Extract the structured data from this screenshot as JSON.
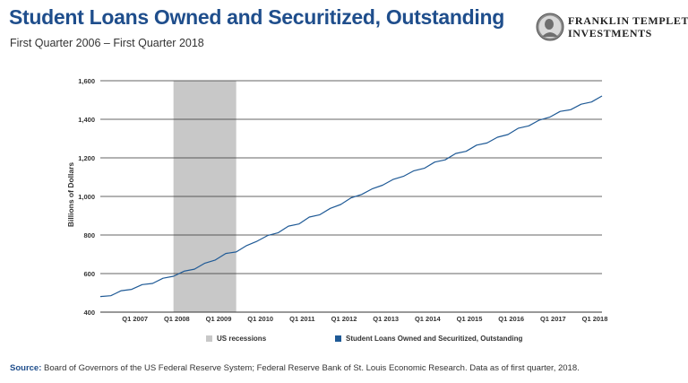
{
  "header": {
    "title": "Student Loans Owned and Securitized, Outstanding",
    "subtitle": "First Quarter 2006 – First Quarter 2018"
  },
  "logo": {
    "line1": "FRANKLIN TEMPLETON",
    "line2": "INVESTMENTS"
  },
  "colors": {
    "title": "#1f4e8c",
    "series": "#1f5a96",
    "recession": "#c8c8c8",
    "grid": "#333333"
  },
  "legend": {
    "recession_label": "US recessions",
    "series_label": "Student Loans Owned and Securitized, Outstanding"
  },
  "footer": {
    "source_label": "Source:",
    "source_text": "Board of Governors of the US Federal Reserve System; Federal Reserve Bank of St. Louis Economic Research. Data as of first quarter, 2018."
  },
  "chart_data": {
    "type": "line",
    "ylabel": "Billions of Dollars",
    "ylim": [
      400,
      1600
    ],
    "yticks": [
      400,
      600,
      800,
      1000,
      1200,
      1400,
      1600
    ],
    "ytick_labels": [
      "400",
      "600",
      "800",
      "1,000",
      "1,200",
      "1,400",
      "1,600"
    ],
    "xlim": [
      2006.0,
      2018.0
    ],
    "xticks": [
      2007,
      2008,
      2009,
      2010,
      2011,
      2012,
      2013,
      2014,
      2015,
      2016,
      2017,
      2018
    ],
    "xtick_labels": [
      "Q1 2007",
      "Q1 2008",
      "Q1 2009",
      "Q1 2010",
      "Q1 2011",
      "Q1 2012",
      "Q1 2013",
      "Q1 2014",
      "Q1 2015",
      "Q1 2016",
      "Q1 2017",
      "Q1 2018"
    ],
    "grid": "horizontal",
    "recessions": [
      {
        "start": 2007.75,
        "end": 2009.25
      }
    ],
    "series": [
      {
        "name": "Student Loans Owned and Securitized, Outstanding",
        "x": [
          2006.0,
          2006.25,
          2006.5,
          2006.75,
          2007.0,
          2007.25,
          2007.5,
          2007.75,
          2008.0,
          2008.25,
          2008.5,
          2008.75,
          2009.0,
          2009.25,
          2009.5,
          2009.75,
          2010.0,
          2010.25,
          2010.5,
          2010.75,
          2011.0,
          2011.25,
          2011.5,
          2011.75,
          2012.0,
          2012.25,
          2012.5,
          2012.75,
          2013.0,
          2013.25,
          2013.5,
          2013.75,
          2014.0,
          2014.25,
          2014.5,
          2014.75,
          2015.0,
          2015.25,
          2015.5,
          2015.75,
          2016.0,
          2016.25,
          2016.5,
          2016.75,
          2017.0,
          2017.25,
          2017.5,
          2017.75,
          2018.0
        ],
        "values": [
          481,
          485,
          511,
          518,
          543,
          549,
          576,
          586,
          612,
          623,
          654,
          670,
          704,
          712,
          745,
          768,
          797,
          811,
          846,
          857,
          893,
          905,
          938,
          958,
          993,
          1010,
          1039,
          1058,
          1088,
          1104,
          1133,
          1146,
          1178,
          1190,
          1223,
          1234,
          1266,
          1277,
          1307,
          1321,
          1354,
          1366,
          1396,
          1411,
          1441,
          1450,
          1478,
          1490,
          1521
        ]
      }
    ]
  }
}
